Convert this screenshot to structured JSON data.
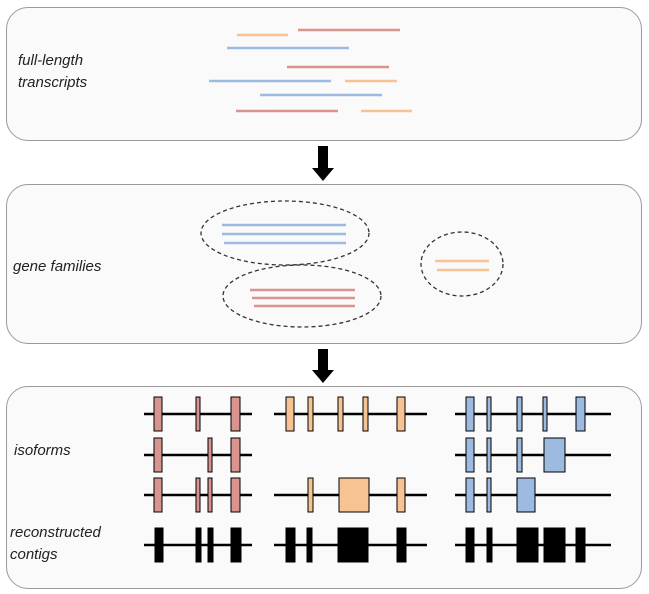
{
  "panels": {
    "transcripts": {
      "label_line1": "full-length",
      "label_line2": "transcripts"
    },
    "families": {
      "label": "gene families"
    },
    "isoforms": {
      "label": "isoforms",
      "contigs_line1": "reconstructed",
      "contigs_line2": "contigs"
    }
  },
  "colors": {
    "pink": "#d9948f",
    "blue": "#9dbbe0",
    "orange": "#f8c393",
    "black": "#000000",
    "ellipse": "#333333"
  },
  "families": [
    {
      "color": "blue",
      "member_count": 3
    },
    {
      "color": "pink",
      "member_count": 3
    },
    {
      "color": "orange",
      "member_count": 2
    }
  ],
  "isoform_groups": [
    {
      "color": "pink",
      "isoform_count": 3
    },
    {
      "color": "orange",
      "isoform_count": 3
    },
    {
      "color": "blue",
      "isoform_count": 3
    }
  ]
}
